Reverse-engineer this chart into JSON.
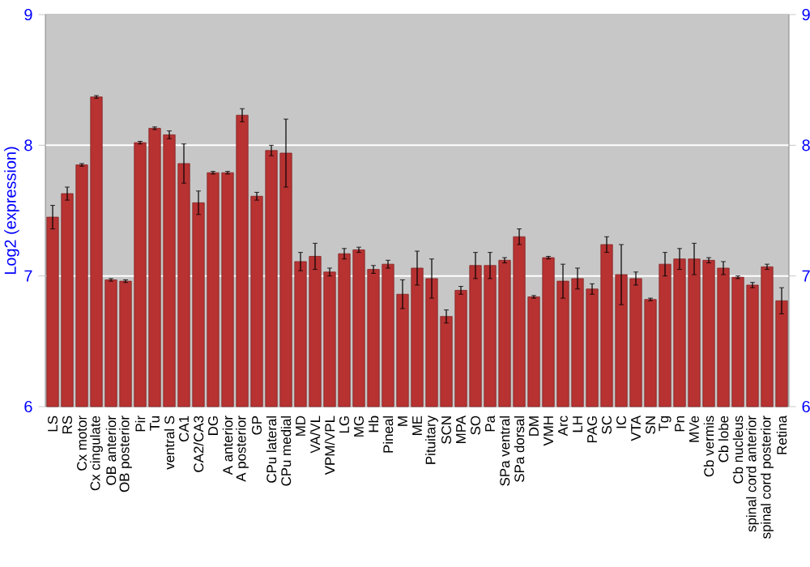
{
  "chart_data": {
    "type": "bar",
    "ylabel": "Log2 (expression)",
    "categories": [
      "LS",
      "RS",
      "Cx motor",
      "Cx cingulate",
      "OB anterior",
      "OB posterior",
      "Pir",
      "Tu",
      "ventral S",
      "CA1",
      "CA2/CA3",
      "DG",
      "A anterior",
      "A posterior",
      "GP",
      "CPu lateral",
      "CPu medial",
      "MD",
      "VA/VL",
      "VPM/VPL",
      "LG",
      "MG",
      "Hb",
      "Pineal",
      "M",
      "ME",
      "Pituitary",
      "SCN",
      "MPA",
      "SO",
      "Pa",
      "SPa ventral",
      "SPa dorsal",
      "DM",
      "VMH",
      "Arc",
      "LH",
      "PAG",
      "SC",
      "IC",
      "VTA",
      "SN",
      "Tg",
      "Pn",
      "MVe",
      "Cb vermis",
      "Cb lobe",
      "Cb nucleus",
      "spinal cord anterior",
      "spinal cord posterior",
      "Retina"
    ],
    "values": [
      7.45,
      7.63,
      7.85,
      8.37,
      6.97,
      6.96,
      8.02,
      8.13,
      8.08,
      7.86,
      7.56,
      7.79,
      7.79,
      8.23,
      7.61,
      7.96,
      7.94,
      7.11,
      7.15,
      7.03,
      7.17,
      7.2,
      7.05,
      7.09,
      6.86,
      7.06,
      6.98,
      6.69,
      6.89,
      7.08,
      7.08,
      7.12,
      7.3,
      6.84,
      7.14,
      6.96,
      6.98,
      6.9,
      7.24,
      7.01,
      6.98,
      6.82,
      7.09,
      7.13,
      7.13,
      7.12,
      7.06,
      6.99,
      6.93,
      7.07,
      6.81
    ],
    "errors": [
      0.09,
      0.05,
      0.01,
      0.01,
      0.01,
      0.01,
      0.01,
      0.01,
      0.03,
      0.15,
      0.09,
      0.01,
      0.01,
      0.05,
      0.03,
      0.04,
      0.26,
      0.07,
      0.1,
      0.03,
      0.04,
      0.02,
      0.03,
      0.03,
      0.11,
      0.13,
      0.15,
      0.05,
      0.03,
      0.1,
      0.1,
      0.02,
      0.06,
      0.01,
      0.01,
      0.13,
      0.08,
      0.04,
      0.06,
      0.23,
      0.05,
      0.01,
      0.09,
      0.08,
      0.12,
      0.02,
      0.05,
      0.01,
      0.02,
      0.02,
      0.1
    ],
    "color": "#b83232",
    "ylim": [
      6,
      9
    ],
    "yticks": [
      6,
      7,
      8,
      9
    ],
    "y2lim": [
      6,
      9
    ],
    "y2ticks": [
      6,
      7,
      8,
      9
    ],
    "grid": "y"
  }
}
